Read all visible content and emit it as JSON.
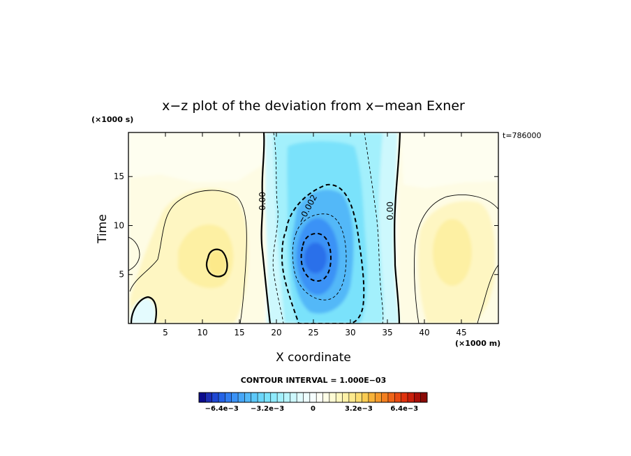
{
  "chart_data": {
    "type": "heatmap",
    "title": "x−z plot of the deviation from x−mean Exner",
    "xlabel": "X coordinate",
    "ylabel": "Time",
    "x_unit": "(×1000 m)",
    "y_unit": "(×1000 s)",
    "time_label": "t=786000",
    "xlim": [
      0,
      50
    ],
    "ylim": [
      0,
      19.5
    ],
    "x_ticks": [
      5,
      10,
      15,
      20,
      25,
      30,
      35,
      40,
      45
    ],
    "y_ticks": [
      5,
      10,
      15
    ],
    "contour_interval_text": "CONTOUR INTERVAL = 1.000E−03",
    "contour_labels": [
      {
        "text": "0.00",
        "x": 18.1,
        "y": 12.5
      },
      {
        "text": "−0.002",
        "x": 24.2,
        "y": 11.7
      },
      {
        "text": "0.00",
        "x": 35.4,
        "y": 11.5
      }
    ],
    "features": [
      {
        "kind": "negative_center",
        "x": 25,
        "y": 6.8,
        "value": -0.006
      },
      {
        "kind": "positive_center",
        "x": 12,
        "y": 6.5,
        "value": 0.002
      },
      {
        "kind": "positive_center",
        "x": 43,
        "y": 8.0,
        "value": 0.001
      },
      {
        "kind": "negative_center",
        "x": 2,
        "y": 1.3,
        "value": -0.0005
      }
    ],
    "colorbar": {
      "min": -0.008,
      "max": 0.008,
      "step": 0.0004,
      "tick_labels": [
        "−6.4e−3",
        "−3.2e−3",
        "0",
        "3.2e−3",
        "6.4e−3"
      ],
      "tick_values": [
        -0.0064,
        -0.0032,
        0,
        0.0032,
        0.0064
      ],
      "colors": [
        "#0b0b8c",
        "#1c2db4",
        "#1f47d2",
        "#2362e6",
        "#2f7cf0",
        "#3a92f6",
        "#46a6f7",
        "#52b8f8",
        "#5cc8f9",
        "#6bd6fa",
        "#7ae2fb",
        "#8eeafc",
        "#a3f0fc",
        "#b8f5fd",
        "#cdf8fd",
        "#e0fbfe",
        "#edfdfe",
        "#f6fefe",
        "#fdfef6",
        "#fefde6",
        "#fefbd4",
        "#fef7bf",
        "#fdf1a6",
        "#fce98e",
        "#fbdd72",
        "#f9cb52",
        "#f7b23a",
        "#f59a2c",
        "#f27f20",
        "#ee6418",
        "#e84a12",
        "#df320e",
        "#c81f0b",
        "#a90f08",
        "#8a0a06"
      ]
    }
  }
}
